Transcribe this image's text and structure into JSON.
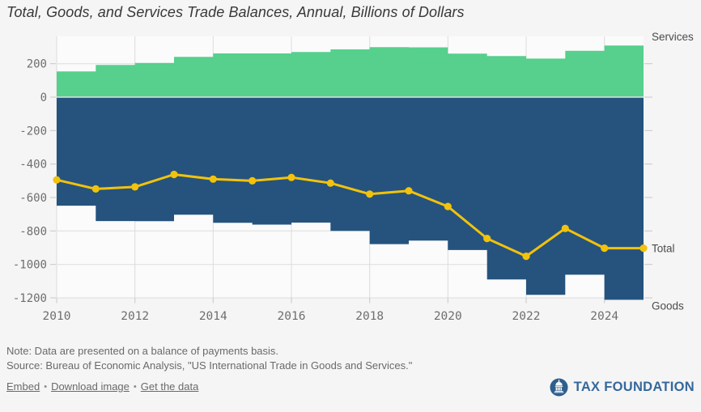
{
  "title": "Total, Goods, and Services Trade Balances, Annual, Billions of Dollars",
  "chart_data": {
    "type": "area",
    "subtype": "stepped-area-with-line",
    "x": [
      2010,
      2011,
      2012,
      2013,
      2014,
      2015,
      2016,
      2017,
      2018,
      2019,
      2020,
      2021,
      2022,
      2023,
      2024
    ],
    "series": [
      {
        "name": "Services",
        "type": "step-area",
        "color": "#56d08c",
        "values": [
          154,
          192,
          204.5,
          240.7,
          261.2,
          261.5,
          269.6,
          285.5,
          298.7,
          297.6,
          260.0,
          245.3,
          230.2,
          276.8,
          308.7
        ]
      },
      {
        "name": "Goods",
        "type": "step-area",
        "color": "#25537e",
        "values": [
          -648.7,
          -740.6,
          -741.2,
          -702.6,
          -751.5,
          -761.9,
          -749.8,
          -799.3,
          -878.7,
          -857.3,
          -913.9,
          -1090.3,
          -1181.4,
          -1061.7,
          -1211.7
        ]
      },
      {
        "name": "Total",
        "type": "line-markers",
        "color": "#f2c20c",
        "values": [
          -494.7,
          -548.6,
          -536.8,
          -461.9,
          -490.2,
          -500.4,
          -480.2,
          -513.8,
          -579.9,
          -559.7,
          -653.9,
          -845.0,
          -951.2,
          -784.9,
          -903.0
        ]
      }
    ],
    "xticks": [
      2010,
      2012,
      2014,
      2016,
      2018,
      2020,
      2022,
      2024
    ],
    "yticks": [
      200,
      0,
      -200,
      -400,
      -600,
      -800,
      -1000,
      -1200
    ],
    "xlim": [
      2010,
      2025
    ],
    "ylim": [
      -1230,
      355
    ],
    "grid": true,
    "legend_position": "right-edge",
    "title": "Total, Goods, and Services Trade Balances, Annual, Billions of Dollars",
    "xlabel": "",
    "ylabel": "",
    "grid_color": "#dcdcdc",
    "tick_text_color": "#6e6e6e",
    "label_text_color": "#4b4b4b",
    "plot_bg": "#fbfbfc",
    "zero_line_color": "#e3e3e3"
  },
  "right_labels": {
    "services": "Services",
    "total": "Total",
    "goods": "Goods"
  },
  "footer": {
    "note": "Note: Data are presented on a balance of payments basis.",
    "source": "Source: Bureau of Economic Analysis, \"US International Trade in Goods and Services.\"",
    "links": [
      {
        "label": "Embed"
      },
      {
        "label": "Download image"
      },
      {
        "label": "Get the data"
      }
    ],
    "separator": "•"
  },
  "logo": {
    "text": "TAX FOUNDATION",
    "color": "#2e5f8e"
  }
}
